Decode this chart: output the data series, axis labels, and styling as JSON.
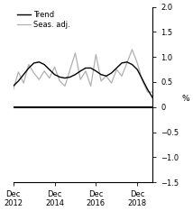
{
  "title": "",
  "ylabel": "%",
  "ylim": [
    -1.5,
    2.0
  ],
  "yticks": [
    -1.5,
    -1.0,
    -0.5,
    0.0,
    0.5,
    1.0,
    1.5,
    2.0
  ],
  "ytick_labels": [
    "−1.5",
    "−1.0",
    "−0.5",
    "0",
    "0.5",
    "1.0",
    "1.5",
    "2.0"
  ],
  "xlim": [
    0,
    27
  ],
  "background_color": "#ffffff",
  "trend_color": "#000000",
  "seas_color": "#b0b0b0",
  "legend_trend": "Trend",
  "legend_seas": "Seas. adj.",
  "x_tick_positions": [
    0,
    8,
    16,
    24
  ],
  "x_tick_labels": [
    "Dec\n2012",
    "Dec\n2014",
    "Dec\n2016",
    "Dec\n2018"
  ],
  "trend_x": [
    0,
    1,
    2,
    3,
    4,
    5,
    6,
    7,
    8,
    9,
    10,
    11,
    12,
    13,
    14,
    15,
    16,
    17,
    18,
    19,
    20,
    21,
    22,
    23,
    24,
    25,
    26,
    27
  ],
  "trend_y": [
    0.42,
    0.52,
    0.65,
    0.78,
    0.88,
    0.9,
    0.85,
    0.75,
    0.65,
    0.6,
    0.58,
    0.6,
    0.65,
    0.72,
    0.78,
    0.78,
    0.72,
    0.65,
    0.62,
    0.68,
    0.78,
    0.88,
    0.9,
    0.85,
    0.75,
    0.55,
    0.35,
    0.18
  ],
  "seas_x": [
    0,
    1,
    2,
    3,
    4,
    5,
    6,
    7,
    8,
    9,
    10,
    11,
    12,
    13,
    14,
    15,
    16,
    17,
    18,
    19,
    20,
    21,
    22,
    23,
    24,
    25,
    26,
    27
  ],
  "seas_y": [
    0.35,
    0.7,
    0.48,
    0.85,
    0.68,
    0.55,
    0.72,
    0.58,
    0.8,
    0.52,
    0.42,
    0.75,
    1.08,
    0.55,
    0.72,
    0.42,
    1.05,
    0.52,
    0.62,
    0.48,
    0.75,
    0.62,
    0.88,
    1.15,
    0.88,
    0.52,
    0.3,
    0.3
  ]
}
